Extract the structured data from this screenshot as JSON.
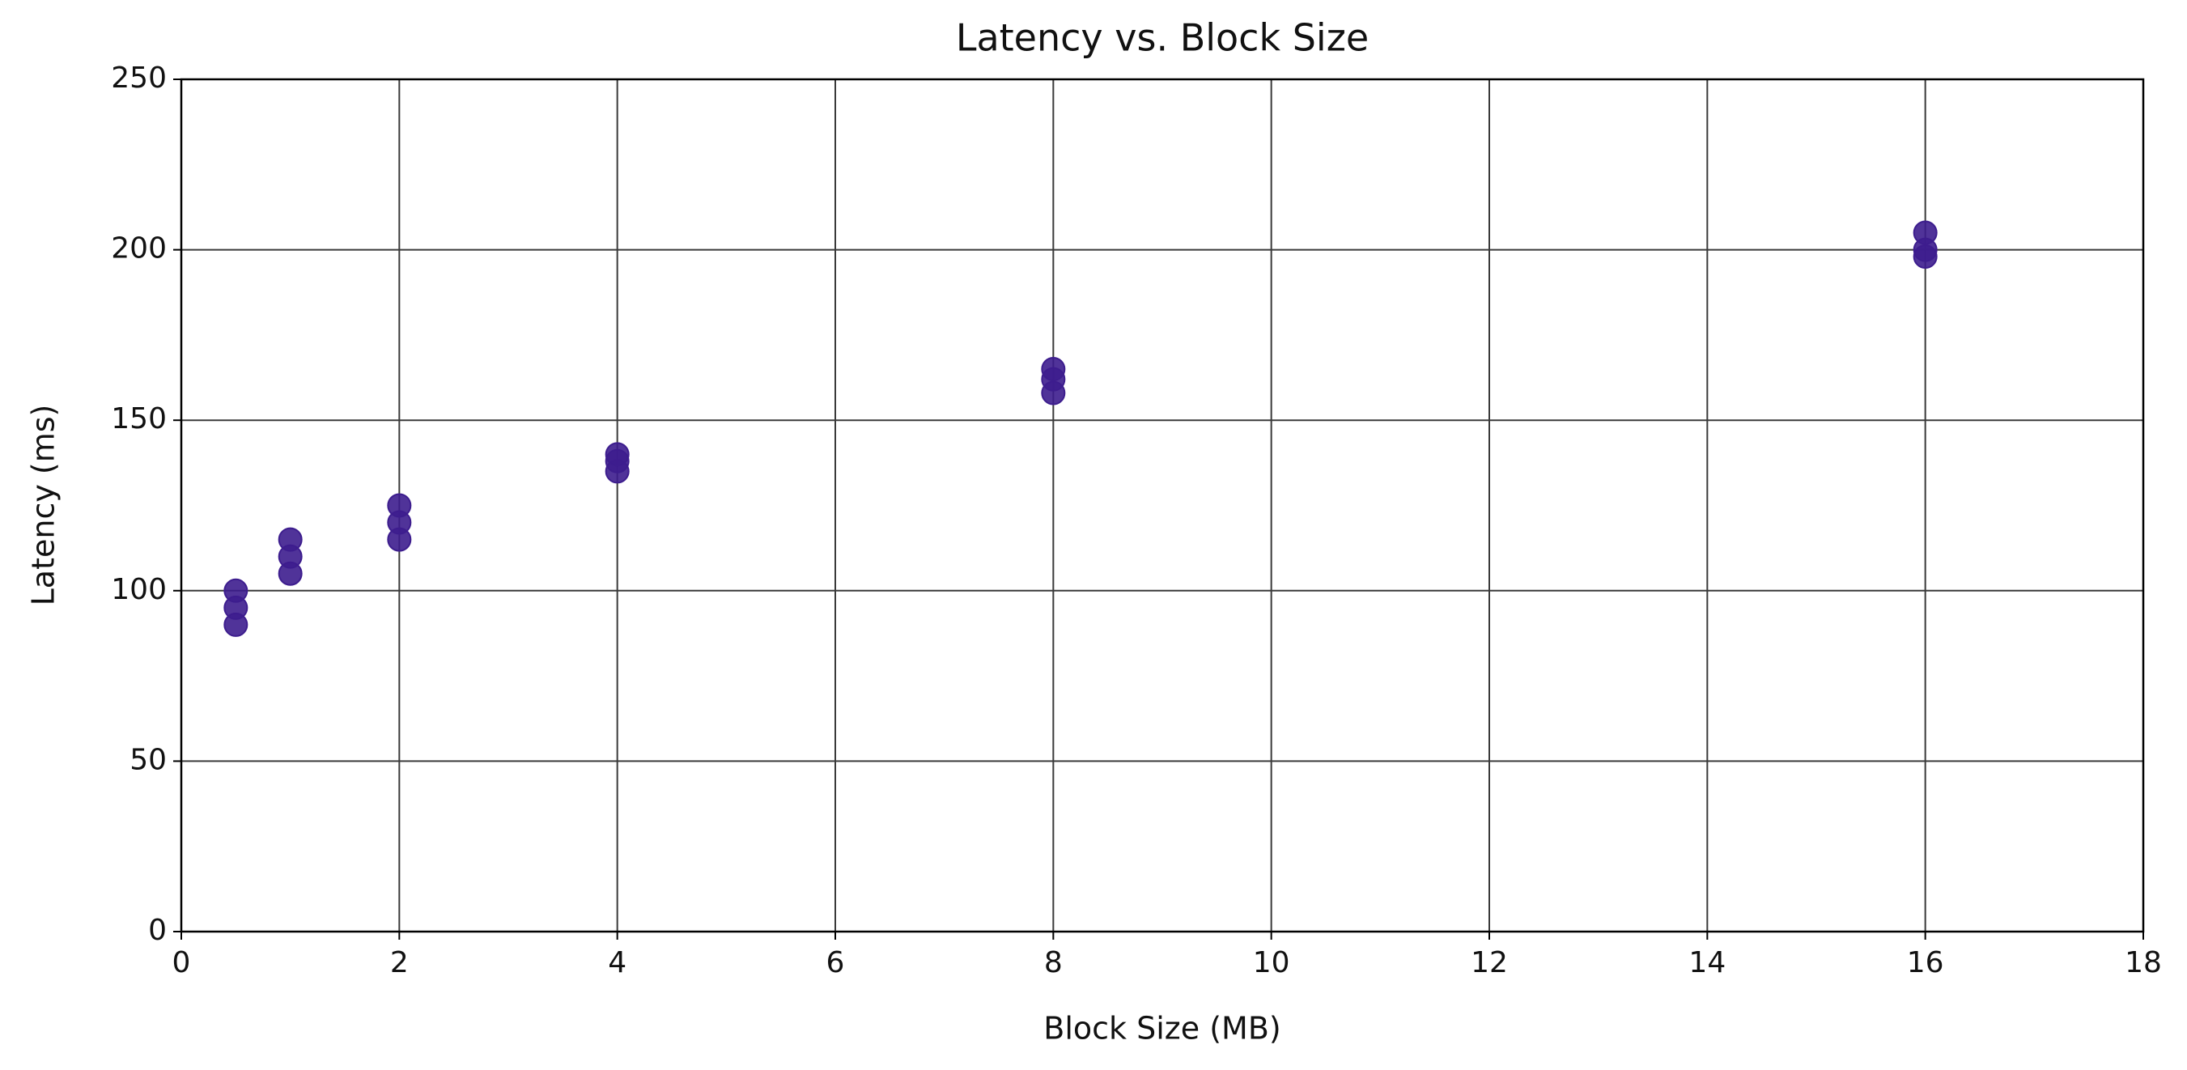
{
  "chart_data": {
    "type": "scatter",
    "title": "Latency vs. Block Size",
    "x_label": "Block Size (MB)",
    "y_label": "Latency (ms)",
    "x": [
      0.5,
      0.5,
      0.5,
      1,
      1,
      1,
      2,
      2,
      2,
      4,
      4,
      4,
      8,
      8,
      8,
      16,
      16,
      16
    ],
    "values": [
      90,
      95,
      100,
      105,
      110,
      115,
      115,
      120,
      125,
      135,
      138,
      140,
      158,
      162,
      165,
      198,
      200,
      205
    ],
    "color": "#3d1d8e",
    "xlim": [
      0,
      18
    ],
    "xticks": [
      0,
      2,
      4,
      6,
      8,
      10,
      12,
      14,
      16,
      18
    ],
    "ylim": [
      0,
      250
    ],
    "yticks": [
      0,
      50,
      100,
      150,
      200,
      250
    ],
    "grid": true
  }
}
